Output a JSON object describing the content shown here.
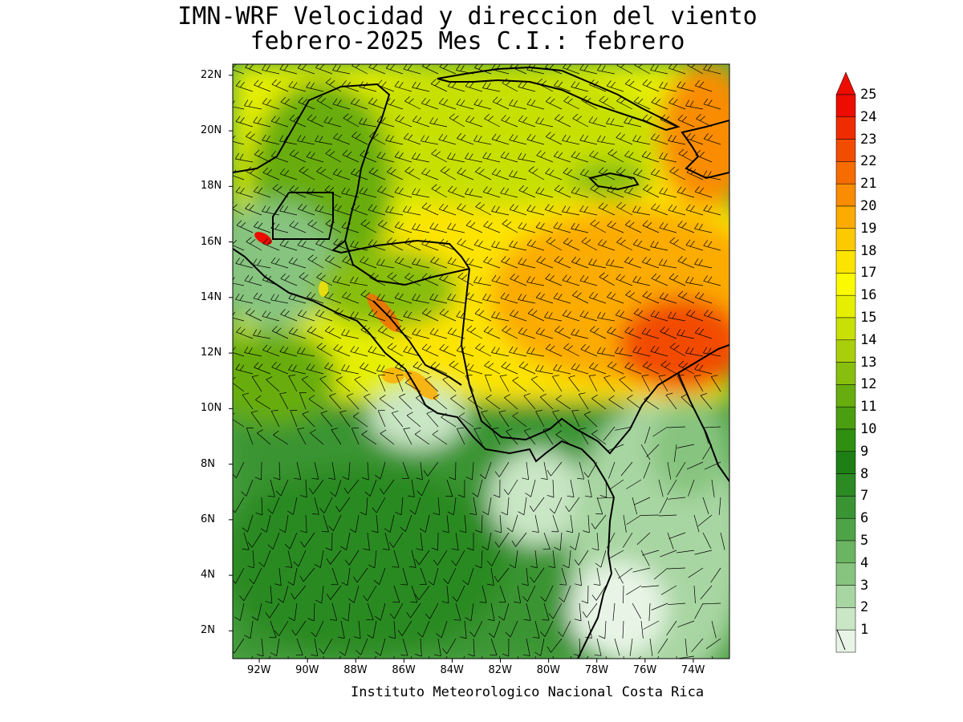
{
  "title_line1": "IMN-WRF Velocidad y direccion del viento",
  "title_line2": "febrero-2025 Mes C.I.: febrero",
  "credit": "Instituto Meteorologico Nacional Costa Rica",
  "lat_labels": [
    "22N",
    "20N",
    "18N",
    "16N",
    "14N",
    "12N",
    "10N",
    "8N",
    "6N",
    "4N",
    "2N"
  ],
  "lon_labels": [
    "92W",
    "90W",
    "88W",
    "86W",
    "84W",
    "82W",
    "80W",
    "78W",
    "76W",
    "74W"
  ],
  "colorbar": {
    "labels": [
      "1",
      "2",
      "3",
      "4",
      "5",
      "6",
      "7",
      "8",
      "9",
      "10",
      "11",
      "12",
      "13",
      "14",
      "15",
      "16",
      "17",
      "18",
      "19",
      "20",
      "21",
      "22",
      "23",
      "24",
      "25"
    ],
    "colors": [
      "#e8f5e6",
      "#c9e6c5",
      "#a8d6a2",
      "#87c47f",
      "#6ab462",
      "#4ea347",
      "#3a9433",
      "#2b8a22",
      "#1e8014",
      "#2f8f10",
      "#4a9e10",
      "#68ad0f",
      "#88be0d",
      "#a8cf0a",
      "#c8e006",
      "#e6ef02",
      "#fbfa00",
      "#fde400",
      "#fdc900",
      "#fcab00",
      "#f98c00",
      "#f66c00",
      "#f24c00",
      "#ef2c00",
      "#ec0c00"
    ]
  },
  "map": {
    "region": "Central America, Caribbean and northern South America",
    "lat_range": [
      1,
      22.5
    ],
    "lon_range": [
      -93,
      -72.5
    ]
  }
}
